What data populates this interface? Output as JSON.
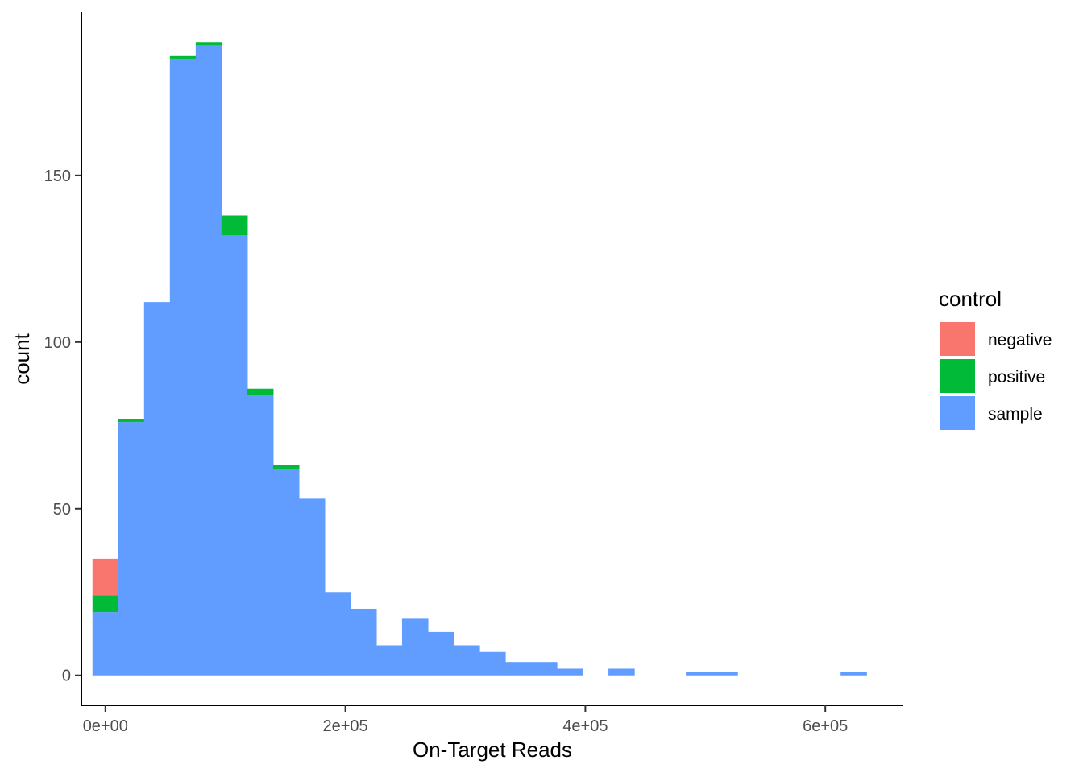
{
  "chart_data": {
    "type": "bar",
    "subtype": "stacked-histogram",
    "xlabel": "On-Target Reads",
    "ylabel": "count",
    "xlim": [
      -20000,
      665000
    ],
    "ylim": [
      -9,
      199
    ],
    "x_ticks": [
      {
        "value": 0,
        "label": "0e+00"
      },
      {
        "value": 200000,
        "label": "2e+05"
      },
      {
        "value": 400000,
        "label": "4e+05"
      },
      {
        "value": 600000,
        "label": "6e+05"
      }
    ],
    "y_ticks": [
      {
        "value": 0,
        "label": "0"
      },
      {
        "value": 50,
        "label": "50"
      },
      {
        "value": 100,
        "label": "100"
      },
      {
        "value": 150,
        "label": "150"
      }
    ],
    "grid": false,
    "legend": {
      "title": "control",
      "position": "right",
      "entries": [
        {
          "key": "negative",
          "label": "negative",
          "color": "#F8766D"
        },
        {
          "key": "positive",
          "label": "positive",
          "color": "#00BA38"
        },
        {
          "key": "sample",
          "label": "sample",
          "color": "#619CFF"
        }
      ]
    },
    "stack_order": [
      "sample",
      "positive",
      "negative"
    ],
    "bin_width": 21500,
    "bin_centers": [
      0,
      21500,
      43000,
      64500,
      86000,
      107500,
      129000,
      150500,
      172000,
      193500,
      215000,
      236500,
      258000,
      279500,
      301000,
      322500,
      344000,
      365500,
      387000,
      408500,
      430000,
      451500,
      473000,
      494500,
      516000,
      537500,
      559000,
      580500,
      602000,
      623500
    ],
    "series": [
      {
        "name": "sample",
        "color": "#619CFF",
        "values": [
          19,
          76,
          112,
          185,
          189,
          132,
          84,
          62,
          53,
          25,
          20,
          9,
          17,
          13,
          9,
          7,
          4,
          4,
          2,
          0,
          2,
          0,
          0,
          1,
          1,
          0,
          0,
          0,
          0,
          1
        ]
      },
      {
        "name": "positive",
        "color": "#00BA38",
        "values": [
          5,
          1,
          0,
          1,
          1,
          6,
          2,
          1,
          0,
          0,
          0,
          0,
          0,
          0,
          0,
          0,
          0,
          0,
          0,
          0,
          0,
          0,
          0,
          0,
          0,
          0,
          0,
          0,
          0,
          0
        ]
      },
      {
        "name": "negative",
        "color": "#F8766D",
        "values": [
          11,
          0,
          0,
          0,
          0,
          0,
          0,
          0,
          0,
          0,
          0,
          0,
          0,
          0,
          0,
          0,
          0,
          0,
          0,
          0,
          0,
          0,
          0,
          0,
          0,
          0,
          0,
          0,
          0,
          0
        ]
      }
    ]
  }
}
